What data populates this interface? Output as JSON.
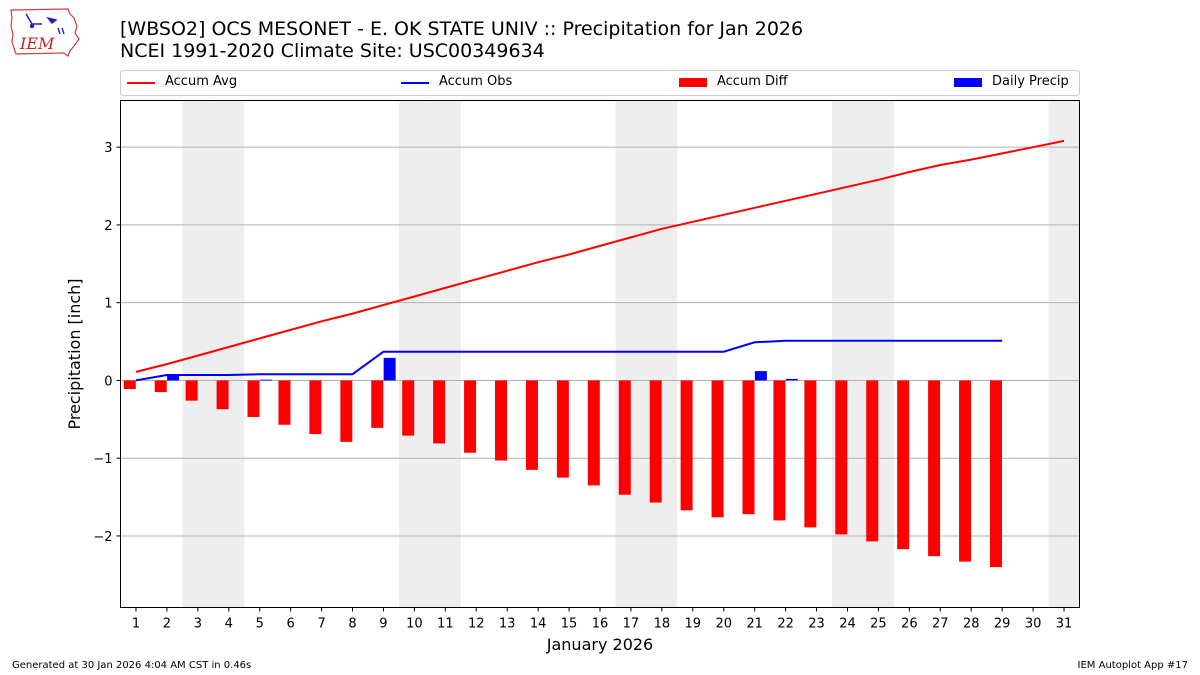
{
  "logo": {
    "text": "IEM"
  },
  "title": {
    "line1": "[WBSO2] OCS MESONET - E. OK STATE UNIV :: Precipitation for Jan 2026",
    "line2": "NCEI 1991-2020 Climate Site: USC00349634"
  },
  "legend": [
    {
      "label": "Accum Avg",
      "kind": "line",
      "color": "#ff0000"
    },
    {
      "label": "Accum Obs",
      "kind": "line",
      "color": "#0000ff"
    },
    {
      "label": "Accum Diff",
      "kind": "bar",
      "color": "#ff0000"
    },
    {
      "label": "Daily Precip",
      "kind": "bar",
      "color": "#0000ff"
    }
  ],
  "footer": {
    "left": "Generated at 30 Jan 2026 4:04 AM CST in 0.46s",
    "right": "IEM Autoplot App #17"
  },
  "chart_data": {
    "type": "bar",
    "title": "[WBSO2] OCS MESONET - E. OK STATE UNIV :: Precipitation for Jan 2026",
    "xlabel": "January 2026",
    "ylabel": "Precipitation [inch]",
    "xlim": [
      0.5,
      31.5
    ],
    "ylim": [
      -2.92,
      3.6
    ],
    "yticks": [
      3,
      2,
      1,
      0,
      -1,
      -2
    ],
    "ytick_labels": [
      "3",
      "2",
      "1",
      "0",
      "−1",
      "−2"
    ],
    "x": [
      1,
      2,
      3,
      4,
      5,
      6,
      7,
      8,
      9,
      10,
      11,
      12,
      13,
      14,
      15,
      16,
      17,
      18,
      19,
      20,
      21,
      22,
      23,
      24,
      25,
      26,
      27,
      28,
      29,
      30,
      31
    ],
    "weekend_days": [
      3,
      4,
      10,
      11,
      17,
      18,
      24,
      25,
      31
    ],
    "grid": "horizontal",
    "series": [
      {
        "name": "Accum Avg",
        "kind": "line",
        "color": "#ff0000",
        "x": [
          1,
          2,
          3,
          4,
          5,
          6,
          7,
          8,
          9,
          10,
          11,
          12,
          13,
          14,
          15,
          16,
          17,
          18,
          19,
          20,
          21,
          22,
          23,
          24,
          25,
          26,
          27,
          28,
          29,
          30,
          31
        ],
        "values": [
          0.11,
          0.21,
          0.32,
          0.43,
          0.54,
          0.65,
          0.76,
          0.86,
          0.97,
          1.08,
          1.19,
          1.3,
          1.41,
          1.52,
          1.62,
          1.73,
          1.84,
          1.95,
          2.04,
          2.13,
          2.22,
          2.31,
          2.4,
          2.49,
          2.58,
          2.68,
          2.77,
          2.84,
          2.92,
          3.0,
          3.08
        ]
      },
      {
        "name": "Accum Obs",
        "kind": "line",
        "color": "#0000ff",
        "x": [
          1,
          2,
          3,
          4,
          5,
          6,
          7,
          8,
          9,
          10,
          11,
          12,
          13,
          14,
          15,
          16,
          17,
          18,
          19,
          20,
          21,
          22,
          23,
          24,
          25,
          26,
          27,
          28,
          29
        ],
        "values": [
          0.0,
          0.07,
          0.07,
          0.07,
          0.08,
          0.08,
          0.08,
          0.08,
          0.37,
          0.37,
          0.37,
          0.37,
          0.37,
          0.37,
          0.37,
          0.37,
          0.37,
          0.37,
          0.37,
          0.37,
          0.49,
          0.51,
          0.51,
          0.51,
          0.51,
          0.51,
          0.51,
          0.51,
          0.51
        ]
      },
      {
        "name": "Accum Diff",
        "kind": "bar",
        "color": "#ff0000",
        "x": [
          1,
          2,
          3,
          4,
          5,
          6,
          7,
          8,
          9,
          10,
          11,
          12,
          13,
          14,
          15,
          16,
          17,
          18,
          19,
          20,
          21,
          22,
          23,
          24,
          25,
          26,
          27,
          28,
          29
        ],
        "values": [
          -0.11,
          -0.15,
          -0.26,
          -0.37,
          -0.47,
          -0.57,
          -0.69,
          -0.79,
          -0.61,
          -0.71,
          -0.81,
          -0.93,
          -1.03,
          -1.15,
          -1.25,
          -1.35,
          -1.47,
          -1.57,
          -1.67,
          -1.76,
          -1.72,
          -1.8,
          -1.89,
          -1.98,
          -2.07,
          -2.17,
          -2.26,
          -2.33,
          -2.4
        ]
      },
      {
        "name": "Daily Precip",
        "kind": "bar",
        "color": "#0000ff",
        "x": [
          2,
          5,
          9,
          21,
          22
        ],
        "values": [
          0.07,
          0.01,
          0.29,
          0.12,
          0.02
        ]
      }
    ]
  }
}
